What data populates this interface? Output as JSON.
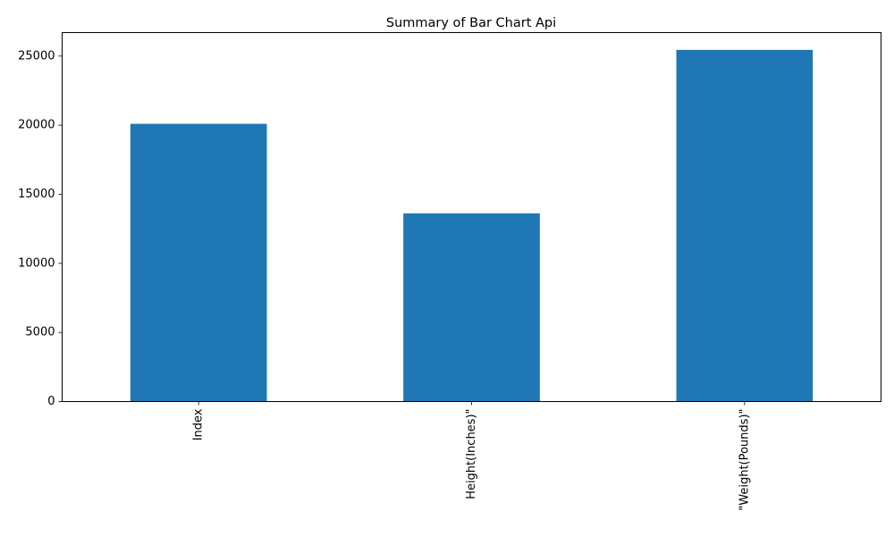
{
  "chart_data": {
    "type": "bar",
    "title": "Summary of Bar Chart Api",
    "categories": [
      "Index",
      "Height(Inches)\"",
      "\"Weight(Pounds)\""
    ],
    "values": [
      20100,
      13620,
      25450
    ],
    "xlabel": "",
    "ylabel": "",
    "ylim": [
      0,
      26700
    ],
    "yticks": [
      0,
      5000,
      10000,
      15000,
      20000,
      25000
    ],
    "ytick_labels": [
      "0",
      "5000",
      "10000",
      "15000",
      "20000",
      "25000"
    ],
    "xtick_rotation": "vertical",
    "grid": false,
    "legend": "none",
    "bar_color": "#1f77b4"
  }
}
